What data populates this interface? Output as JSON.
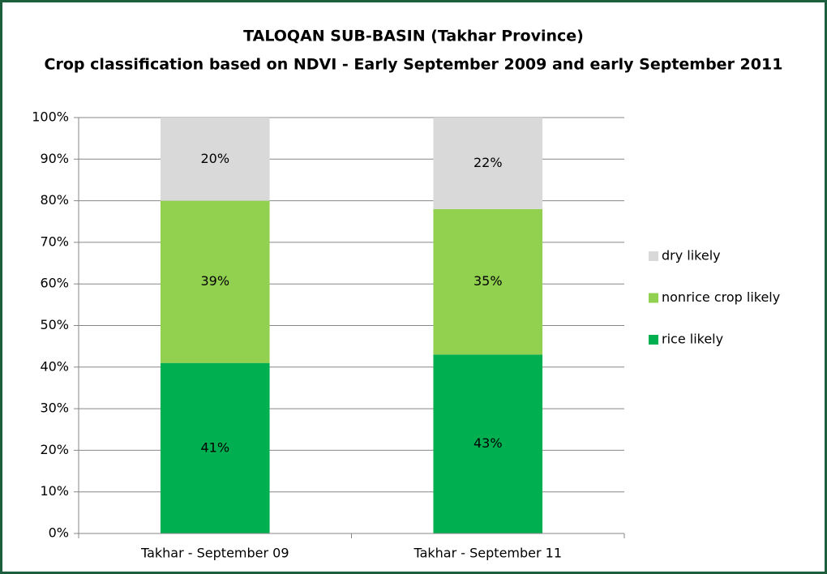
{
  "chart_data": {
    "type": "stacked_bar",
    "title": [
      "TALOQAN SUB-BASIN (Takhar Province)",
      "Crop classification  based on NDVI - Early September 2009 and early September 2011"
    ],
    "categories": [
      "Takhar - September 09",
      "Takhar - September 11"
    ],
    "series": [
      {
        "name": "rice likely",
        "color": "#00b050",
        "values": [
          41,
          43
        ],
        "value_labels": [
          "41%",
          "43%"
        ]
      },
      {
        "name": "nonrice crop likely",
        "color": "#92d050",
        "values": [
          39,
          35
        ],
        "value_labels": [
          "39%",
          "35%"
        ]
      },
      {
        "name": "dry likely",
        "color": "#d9d9d9",
        "values": [
          20,
          22
        ],
        "value_labels": [
          "20%",
          "22%"
        ]
      }
    ],
    "ylim": [
      0,
      100
    ],
    "yticks": [
      {
        "value": 0,
        "label": "0%"
      },
      {
        "value": 10,
        "label": "10%"
      },
      {
        "value": 20,
        "label": "20%"
      },
      {
        "value": 30,
        "label": "30%"
      },
      {
        "value": 40,
        "label": "40%"
      },
      {
        "value": 50,
        "label": "50%"
      },
      {
        "value": 60,
        "label": "60%"
      },
      {
        "value": 70,
        "label": "70%"
      },
      {
        "value": 80,
        "label": "80%"
      },
      {
        "value": 90,
        "label": "90%"
      },
      {
        "value": 100,
        "label": "100%"
      }
    ],
    "grid": true,
    "legend": "right"
  }
}
